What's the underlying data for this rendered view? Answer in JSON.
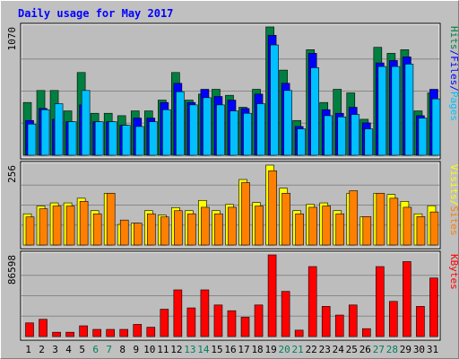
{
  "chart_data": {
    "type": "bar",
    "title": "Daily usage for May 2017",
    "days": [
      "1",
      "2",
      "3",
      "4",
      "5",
      "6",
      "7",
      "8",
      "9",
      "10",
      "11",
      "12",
      "13",
      "14",
      "15",
      "16",
      "17",
      "18",
      "19",
      "20",
      "21",
      "22",
      "23",
      "24",
      "25",
      "26",
      "27",
      "28",
      "29",
      "30",
      "31"
    ],
    "weekend_days": [
      "6",
      "7",
      "13",
      "14",
      "20",
      "21",
      "27",
      "28"
    ],
    "panels": [
      {
        "id": "hits",
        "max_label": "1070",
        "ymax": 1070,
        "legend": [
          {
            "text": "Pages",
            "color": "#00c0ff"
          },
          {
            "text": "/",
            "color": "#0000ff"
          },
          {
            "text": "Files",
            "color": "#0000ff"
          },
          {
            "text": "/",
            "color": "#0000ff"
          },
          {
            "text": "Hits",
            "color": "#008040"
          }
        ],
        "series": [
          {
            "name": "Hits",
            "color": "#008040",
            "values": [
              440,
              540,
              540,
              370,
              690,
              350,
              350,
              330,
              370,
              370,
              460,
              690,
              460,
              510,
              550,
              500,
              400,
              550,
              1070,
              710,
              290,
              880,
              440,
              550,
              520,
              300,
              900,
              850,
              880,
              370,
              520
            ]
          },
          {
            "name": "Files",
            "color": "#0000ff",
            "values": [
              290,
              390,
              300,
              280,
              420,
              280,
              280,
              250,
              310,
              310,
              440,
              600,
              440,
              550,
              490,
              460,
              390,
              510,
              1000,
              600,
              240,
              850,
              380,
              350,
              400,
              270,
              770,
              790,
              820,
              330,
              550
            ]
          },
          {
            "name": "Pages",
            "color": "#00c0ff",
            "values": [
              260,
              380,
              430,
              280,
              540,
              280,
              280,
              250,
              240,
              280,
              380,
              530,
              420,
              480,
              420,
              370,
              350,
              430,
              920,
              540,
              220,
              730,
              330,
              320,
              340,
              220,
              740,
              740,
              760,
              310,
              470
            ]
          }
        ]
      },
      {
        "id": "visits",
        "max_label": "256",
        "ymax": 256,
        "legend": [
          {
            "text": "Sites",
            "color": "#ff8000"
          },
          {
            "text": "/",
            "color": "#ffff00"
          },
          {
            "text": "Visits",
            "color": "#ffff00"
          }
        ],
        "series": [
          {
            "name": "Visits",
            "color": "#ffff00",
            "values": [
              100,
              125,
              135,
              135,
              150,
              110,
              166,
              66,
              70,
              110,
              96,
              120,
              110,
              143,
              110,
              130,
              210,
              136,
              256,
              182,
              110,
              130,
              135,
              110,
              166,
              91,
              166,
              162,
              140,
              100,
              126
            ]
          },
          {
            "name": "Sites",
            "color": "#ff8000",
            "values": [
              90,
              116,
              125,
              125,
              140,
              100,
              166,
              80,
              70,
              100,
              90,
              110,
              100,
              121,
              100,
              121,
              200,
              125,
              238,
              166,
              100,
              121,
              125,
              100,
              174,
              91,
              166,
              150,
              121,
              91,
              106
            ]
          }
        ]
      },
      {
        "id": "kbytes",
        "max_label": "86598",
        "ymax": 86598,
        "legend": [
          {
            "text": "KBytes",
            "color": "#ff0000"
          }
        ],
        "series": [
          {
            "name": "KBytes",
            "color": "#ff0000",
            "values": [
              14500,
              18300,
              4600,
              4600,
              11400,
              7600,
              7600,
              7600,
              12900,
              9900,
              29000,
              49500,
              30400,
              49500,
              33500,
              27400,
              20500,
              33500,
              86598,
              47900,
              6800,
              74200,
              32000,
              22800,
              33500,
              8400,
              74200,
              37300,
              79500,
              32000,
              62100
            ]
          }
        ]
      }
    ]
  }
}
